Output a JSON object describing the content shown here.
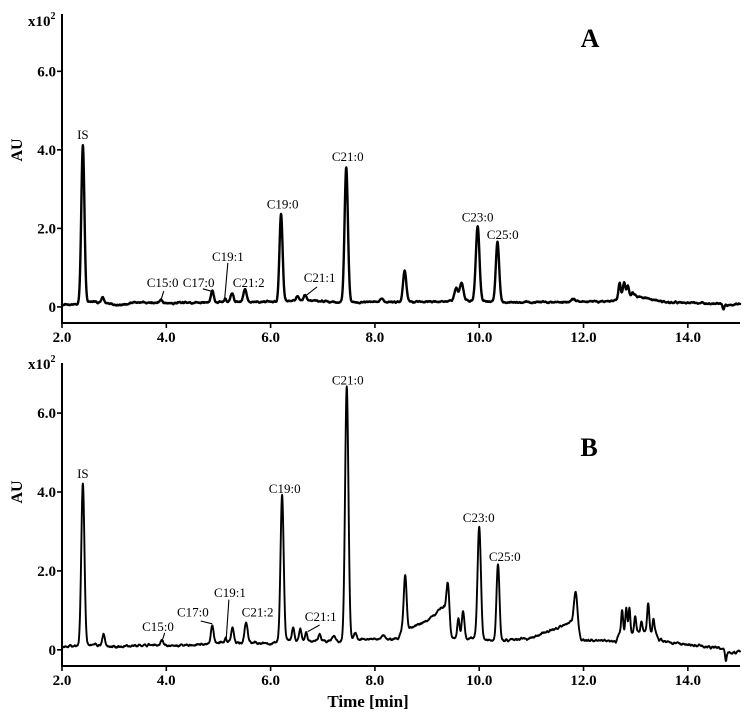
{
  "chart_data": [
    {
      "panel": "A",
      "type": "line",
      "title": "A",
      "xlabel": "",
      "ylabel": "AU",
      "y_multiplier": {
        "base": "x10",
        "exponent": "2"
      },
      "xlim": [
        2.0,
        15.0
      ],
      "ylim": [
        -0.41,
        7.46
      ],
      "grid": false,
      "legend": null,
      "xticks": [
        2,
        4,
        6,
        8,
        10,
        12,
        14
      ],
      "xtick_labels": [
        "2.0",
        "4.0",
        "6.0",
        "8.0",
        "10.0",
        "12.0",
        "14.0"
      ],
      "yticks": [
        0,
        2,
        4,
        6
      ],
      "ytick_labels": [
        "0",
        "2.0",
        "4.0",
        "6.0"
      ],
      "line_color": "#000000",
      "baseline": [
        [
          2.0,
          0.05
        ],
        [
          2.3,
          0.07
        ],
        [
          2.45,
          0.13
        ],
        [
          2.7,
          0.12
        ],
        [
          2.95,
          0.08
        ],
        [
          3.05,
          0.04
        ],
        [
          3.25,
          0.06
        ],
        [
          3.35,
          0.12
        ],
        [
          4.0,
          0.1
        ],
        [
          4.7,
          0.11
        ],
        [
          5.0,
          0.13
        ],
        [
          5.7,
          0.13
        ],
        [
          6.0,
          0.12
        ],
        [
          6.4,
          0.16
        ],
        [
          6.8,
          0.16
        ],
        [
          7.3,
          0.12
        ],
        [
          7.7,
          0.12
        ],
        [
          8.5,
          0.13
        ],
        [
          9.4,
          0.14
        ],
        [
          9.52,
          0.2
        ],
        [
          9.85,
          0.15
        ],
        [
          10.6,
          0.12
        ],
        [
          11.5,
          0.12
        ],
        [
          12.6,
          0.15
        ],
        [
          12.7,
          0.3
        ],
        [
          13.1,
          0.25
        ],
        [
          13.3,
          0.2
        ],
        [
          13.6,
          0.12
        ],
        [
          14.6,
          0.08
        ],
        [
          14.75,
          0.04
        ],
        [
          15.0,
          0.07
        ]
      ],
      "peaks": [
        {
          "t": 2.4,
          "height": 4.12,
          "sigma": 0.03,
          "compound": "IS"
        },
        {
          "t": 2.78,
          "height": 0.25,
          "sigma": 0.025
        },
        {
          "t": 3.9,
          "height": 0.18,
          "sigma": 0.025,
          "compound": "C15:0"
        },
        {
          "t": 4.88,
          "height": 0.42,
          "sigma": 0.025,
          "compound": "C17:0"
        },
        {
          "t": 5.13,
          "height": 0.22,
          "sigma": 0.015,
          "compound": "C19:1"
        },
        {
          "t": 5.26,
          "height": 0.36,
          "sigma": 0.03
        },
        {
          "t": 5.51,
          "height": 0.45,
          "sigma": 0.03,
          "compound": "C21:2"
        },
        {
          "t": 6.2,
          "height": 2.37,
          "sigma": 0.03,
          "compound": "C19:0"
        },
        {
          "t": 6.52,
          "height": 0.28,
          "sigma": 0.03
        },
        {
          "t": 6.66,
          "height": 0.3,
          "sigma": 0.03,
          "compound": "C21:1"
        },
        {
          "t": 7.45,
          "height": 3.57,
          "sigma": 0.032,
          "compound": "C21:0"
        },
        {
          "t": 8.13,
          "height": 0.22,
          "sigma": 0.03
        },
        {
          "t": 8.57,
          "height": 0.94,
          "sigma": 0.03
        },
        {
          "t": 9.56,
          "height": 0.48,
          "sigma": 0.03
        },
        {
          "t": 9.66,
          "height": 0.61,
          "sigma": 0.035
        },
        {
          "t": 9.97,
          "height": 2.06,
          "sigma": 0.035,
          "compound": "C23:0"
        },
        {
          "t": 10.35,
          "height": 1.65,
          "sigma": 0.032,
          "compound": "C25:0"
        },
        {
          "t": 11.8,
          "height": 0.2,
          "sigma": 0.04
        },
        {
          "t": 12.69,
          "height": 0.61,
          "sigma": 0.02
        },
        {
          "t": 12.78,
          "height": 0.64,
          "sigma": 0.022
        },
        {
          "t": 12.85,
          "height": 0.52,
          "sigma": 0.02
        },
        {
          "t": 12.94,
          "height": 0.38,
          "sigma": 0.02
        },
        {
          "t": 13.0,
          "height": 0.31,
          "sigma": 0.02
        },
        {
          "t": 13.07,
          "height": 0.25,
          "sigma": 0.02
        },
        {
          "t": 14.68,
          "height": -0.05,
          "sigma": 0.015
        }
      ],
      "annotations": [
        {
          "text": "IS",
          "t": 2.4,
          "y": 4.28
        },
        {
          "text": "C15:0",
          "t": 3.93,
          "y": 0.51,
          "leader": [
            3.95,
            0.4,
            3.9,
            0.18
          ]
        },
        {
          "text": "C17:0",
          "t": 4.62,
          "y": 0.51,
          "leader": [
            4.7,
            0.46,
            4.86,
            0.4
          ]
        },
        {
          "text": "C19:1",
          "t": 5.18,
          "y": 1.17,
          "leader": [
            5.18,
            1.12,
            5.12,
            0.22
          ]
        },
        {
          "text": "C21:2",
          "t": 5.58,
          "y": 0.51
        },
        {
          "text": "C19:0",
          "t": 6.23,
          "y": 2.5
        },
        {
          "text": "C21:1",
          "t": 6.94,
          "y": 0.64,
          "leader": [
            6.89,
            0.51,
            6.67,
            0.28
          ]
        },
        {
          "text": "C21:0",
          "t": 7.48,
          "y": 3.72
        },
        {
          "text": "C23:0",
          "t": 9.97,
          "y": 2.17
        },
        {
          "text": "C25:0",
          "t": 10.45,
          "y": 1.73
        }
      ]
    },
    {
      "panel": "B",
      "type": "line",
      "title": "B",
      "xlabel": "Time [min]",
      "ylabel": "AU",
      "y_multiplier": {
        "base": "x10",
        "exponent": "2"
      },
      "xlim": [
        2.0,
        15.0
      ],
      "ylim": [
        -0.41,
        7.27
      ],
      "grid": false,
      "legend": null,
      "xticks": [
        2,
        4,
        6,
        8,
        10,
        12,
        14
      ],
      "xtick_labels": [
        "2.0",
        "4.0",
        "6.0",
        "8.0",
        "10.0",
        "12.0",
        "14.0"
      ],
      "yticks": [
        0,
        2,
        4,
        6
      ],
      "ytick_labels": [
        "0",
        "2.0",
        "4.0",
        "6.0"
      ],
      "line_color": "#000000",
      "baseline": [
        [
          2.0,
          0.08
        ],
        [
          2.3,
          0.1
        ],
        [
          2.5,
          0.14
        ],
        [
          2.7,
          0.12
        ],
        [
          3.0,
          0.07
        ],
        [
          3.5,
          0.12
        ],
        [
          4.5,
          0.12
        ],
        [
          4.8,
          0.15
        ],
        [
          5.05,
          0.2
        ],
        [
          5.7,
          0.17
        ],
        [
          6.0,
          0.15
        ],
        [
          6.1,
          0.2
        ],
        [
          6.35,
          0.25
        ],
        [
          6.8,
          0.22
        ],
        [
          7.35,
          0.2
        ],
        [
          7.7,
          0.27
        ],
        [
          8.45,
          0.27
        ],
        [
          8.52,
          0.5
        ],
        [
          8.7,
          0.56
        ],
        [
          9.0,
          0.72
        ],
        [
          9.32,
          1.1
        ],
        [
          9.45,
          0.3
        ],
        [
          9.8,
          0.28
        ],
        [
          9.9,
          0.3
        ],
        [
          10.2,
          0.25
        ],
        [
          10.5,
          0.25
        ],
        [
          11.0,
          0.3
        ],
        [
          11.45,
          0.52
        ],
        [
          11.75,
          0.7
        ],
        [
          11.95,
          0.25
        ],
        [
          12.62,
          0.2
        ],
        [
          12.7,
          0.45
        ],
        [
          13.38,
          0.45
        ],
        [
          13.45,
          0.25
        ],
        [
          13.8,
          0.15
        ],
        [
          14.6,
          0.05
        ],
        [
          14.7,
          0.0
        ],
        [
          14.85,
          -0.1
        ],
        [
          15.0,
          -0.02
        ]
      ],
      "peaks": [
        {
          "t": 2.4,
          "height": 4.23,
          "sigma": 0.03,
          "compound": "IS"
        },
        {
          "t": 2.8,
          "height": 0.43,
          "sigma": 0.022
        },
        {
          "t": 3.92,
          "height": 0.23,
          "sigma": 0.025,
          "compound": "C15:0"
        },
        {
          "t": 4.88,
          "height": 0.63,
          "sigma": 0.025,
          "compound": "C17:0"
        },
        {
          "t": 5.14,
          "height": 0.3,
          "sigma": 0.015,
          "compound": "C19:1"
        },
        {
          "t": 5.27,
          "height": 0.58,
          "sigma": 0.025
        },
        {
          "t": 5.53,
          "height": 0.71,
          "sigma": 0.028,
          "compound": "C21:2"
        },
        {
          "t": 6.22,
          "height": 3.92,
          "sigma": 0.03,
          "compound": "C19:0"
        },
        {
          "t": 6.43,
          "height": 0.56,
          "sigma": 0.022
        },
        {
          "t": 6.57,
          "height": 0.51,
          "sigma": 0.022
        },
        {
          "t": 6.68,
          "height": 0.46,
          "sigma": 0.02,
          "compound": "C21:1"
        },
        {
          "t": 6.94,
          "height": 0.38,
          "sigma": 0.03
        },
        {
          "t": 7.21,
          "height": 0.35,
          "sigma": 0.03
        },
        {
          "t": 7.46,
          "height": 6.66,
          "sigma": 0.032,
          "compound": "C21:0"
        },
        {
          "t": 7.62,
          "height": 0.43,
          "sigma": 0.025
        },
        {
          "t": 8.16,
          "height": 0.4,
          "sigma": 0.03
        },
        {
          "t": 8.58,
          "height": 1.87,
          "sigma": 0.028
        },
        {
          "t": 9.4,
          "height": 1.67,
          "sigma": 0.03
        },
        {
          "t": 9.6,
          "height": 0.8,
          "sigma": 0.022
        },
        {
          "t": 9.69,
          "height": 1.0,
          "sigma": 0.025
        },
        {
          "t": 10.0,
          "height": 3.11,
          "sigma": 0.032,
          "compound": "C23:0"
        },
        {
          "t": 10.36,
          "height": 2.18,
          "sigma": 0.028,
          "compound": "C25:0"
        },
        {
          "t": 11.22,
          "height": 0.46,
          "sigma": 0.03
        },
        {
          "t": 11.85,
          "height": 1.47,
          "sigma": 0.035
        },
        {
          "t": 12.74,
          "height": 0.98,
          "sigma": 0.018
        },
        {
          "t": 12.82,
          "height": 1.09,
          "sigma": 0.018
        },
        {
          "t": 12.88,
          "height": 1.06,
          "sigma": 0.016
        },
        {
          "t": 12.99,
          "height": 0.84,
          "sigma": 0.018
        },
        {
          "t": 13.11,
          "height": 0.71,
          "sigma": 0.018
        },
        {
          "t": 13.24,
          "height": 1.19,
          "sigma": 0.02
        },
        {
          "t": 13.34,
          "height": 0.78,
          "sigma": 0.018
        },
        {
          "t": 14.73,
          "height": -0.28,
          "sigma": 0.015
        }
      ],
      "annotations": [
        {
          "text": "IS",
          "t": 2.4,
          "y": 4.35
        },
        {
          "text": "C15:0",
          "t": 3.84,
          "y": 0.48,
          "leader": [
            3.97,
            0.43,
            3.92,
            0.23
          ]
        },
        {
          "text": "C17:0",
          "t": 4.51,
          "y": 0.84,
          "leader": [
            4.66,
            0.73,
            4.88,
            0.66
          ]
        },
        {
          "text": "C19:1",
          "t": 5.22,
          "y": 1.34,
          "leader": [
            5.2,
            1.27,
            5.15,
            0.3
          ]
        },
        {
          "text": "C21:2",
          "t": 5.75,
          "y": 0.84
        },
        {
          "text": "C19:0",
          "t": 6.27,
          "y": 3.97
        },
        {
          "text": "C21:1",
          "t": 6.96,
          "y": 0.73,
          "leader": [
            6.94,
            0.63,
            6.71,
            0.46
          ]
        },
        {
          "text": "C21:0",
          "t": 7.48,
          "y": 6.73
        },
        {
          "text": "C23:0",
          "t": 9.99,
          "y": 3.24
        },
        {
          "text": "C25:0",
          "t": 10.49,
          "y": 2.25
        }
      ]
    }
  ]
}
